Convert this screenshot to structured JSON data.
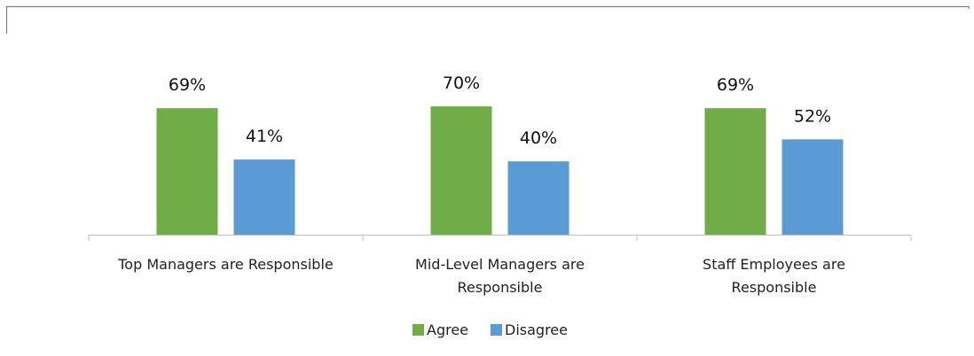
{
  "chart_data": {
    "type": "bar",
    "categories": [
      [
        "Top Managers are Responsible"
      ],
      [
        "Mid-Level Managers are",
        "Responsible"
      ],
      [
        "Staff Employees are",
        "Responsible"
      ]
    ],
    "series": [
      {
        "name": "Agree",
        "values": [
          69,
          70,
          69
        ],
        "color": "#70AD47"
      },
      {
        "name": "Disagree",
        "values": [
          41,
          40,
          52
        ],
        "color": "#5B9BD5"
      }
    ],
    "value_suffix": "%",
    "ylim": [
      0,
      100
    ],
    "grid": false,
    "legend_position": "bottom",
    "title": "",
    "xlabel": "",
    "ylabel": ""
  },
  "colors": {
    "axis": "#BFBFBF",
    "frame": "#7F7F7F"
  }
}
